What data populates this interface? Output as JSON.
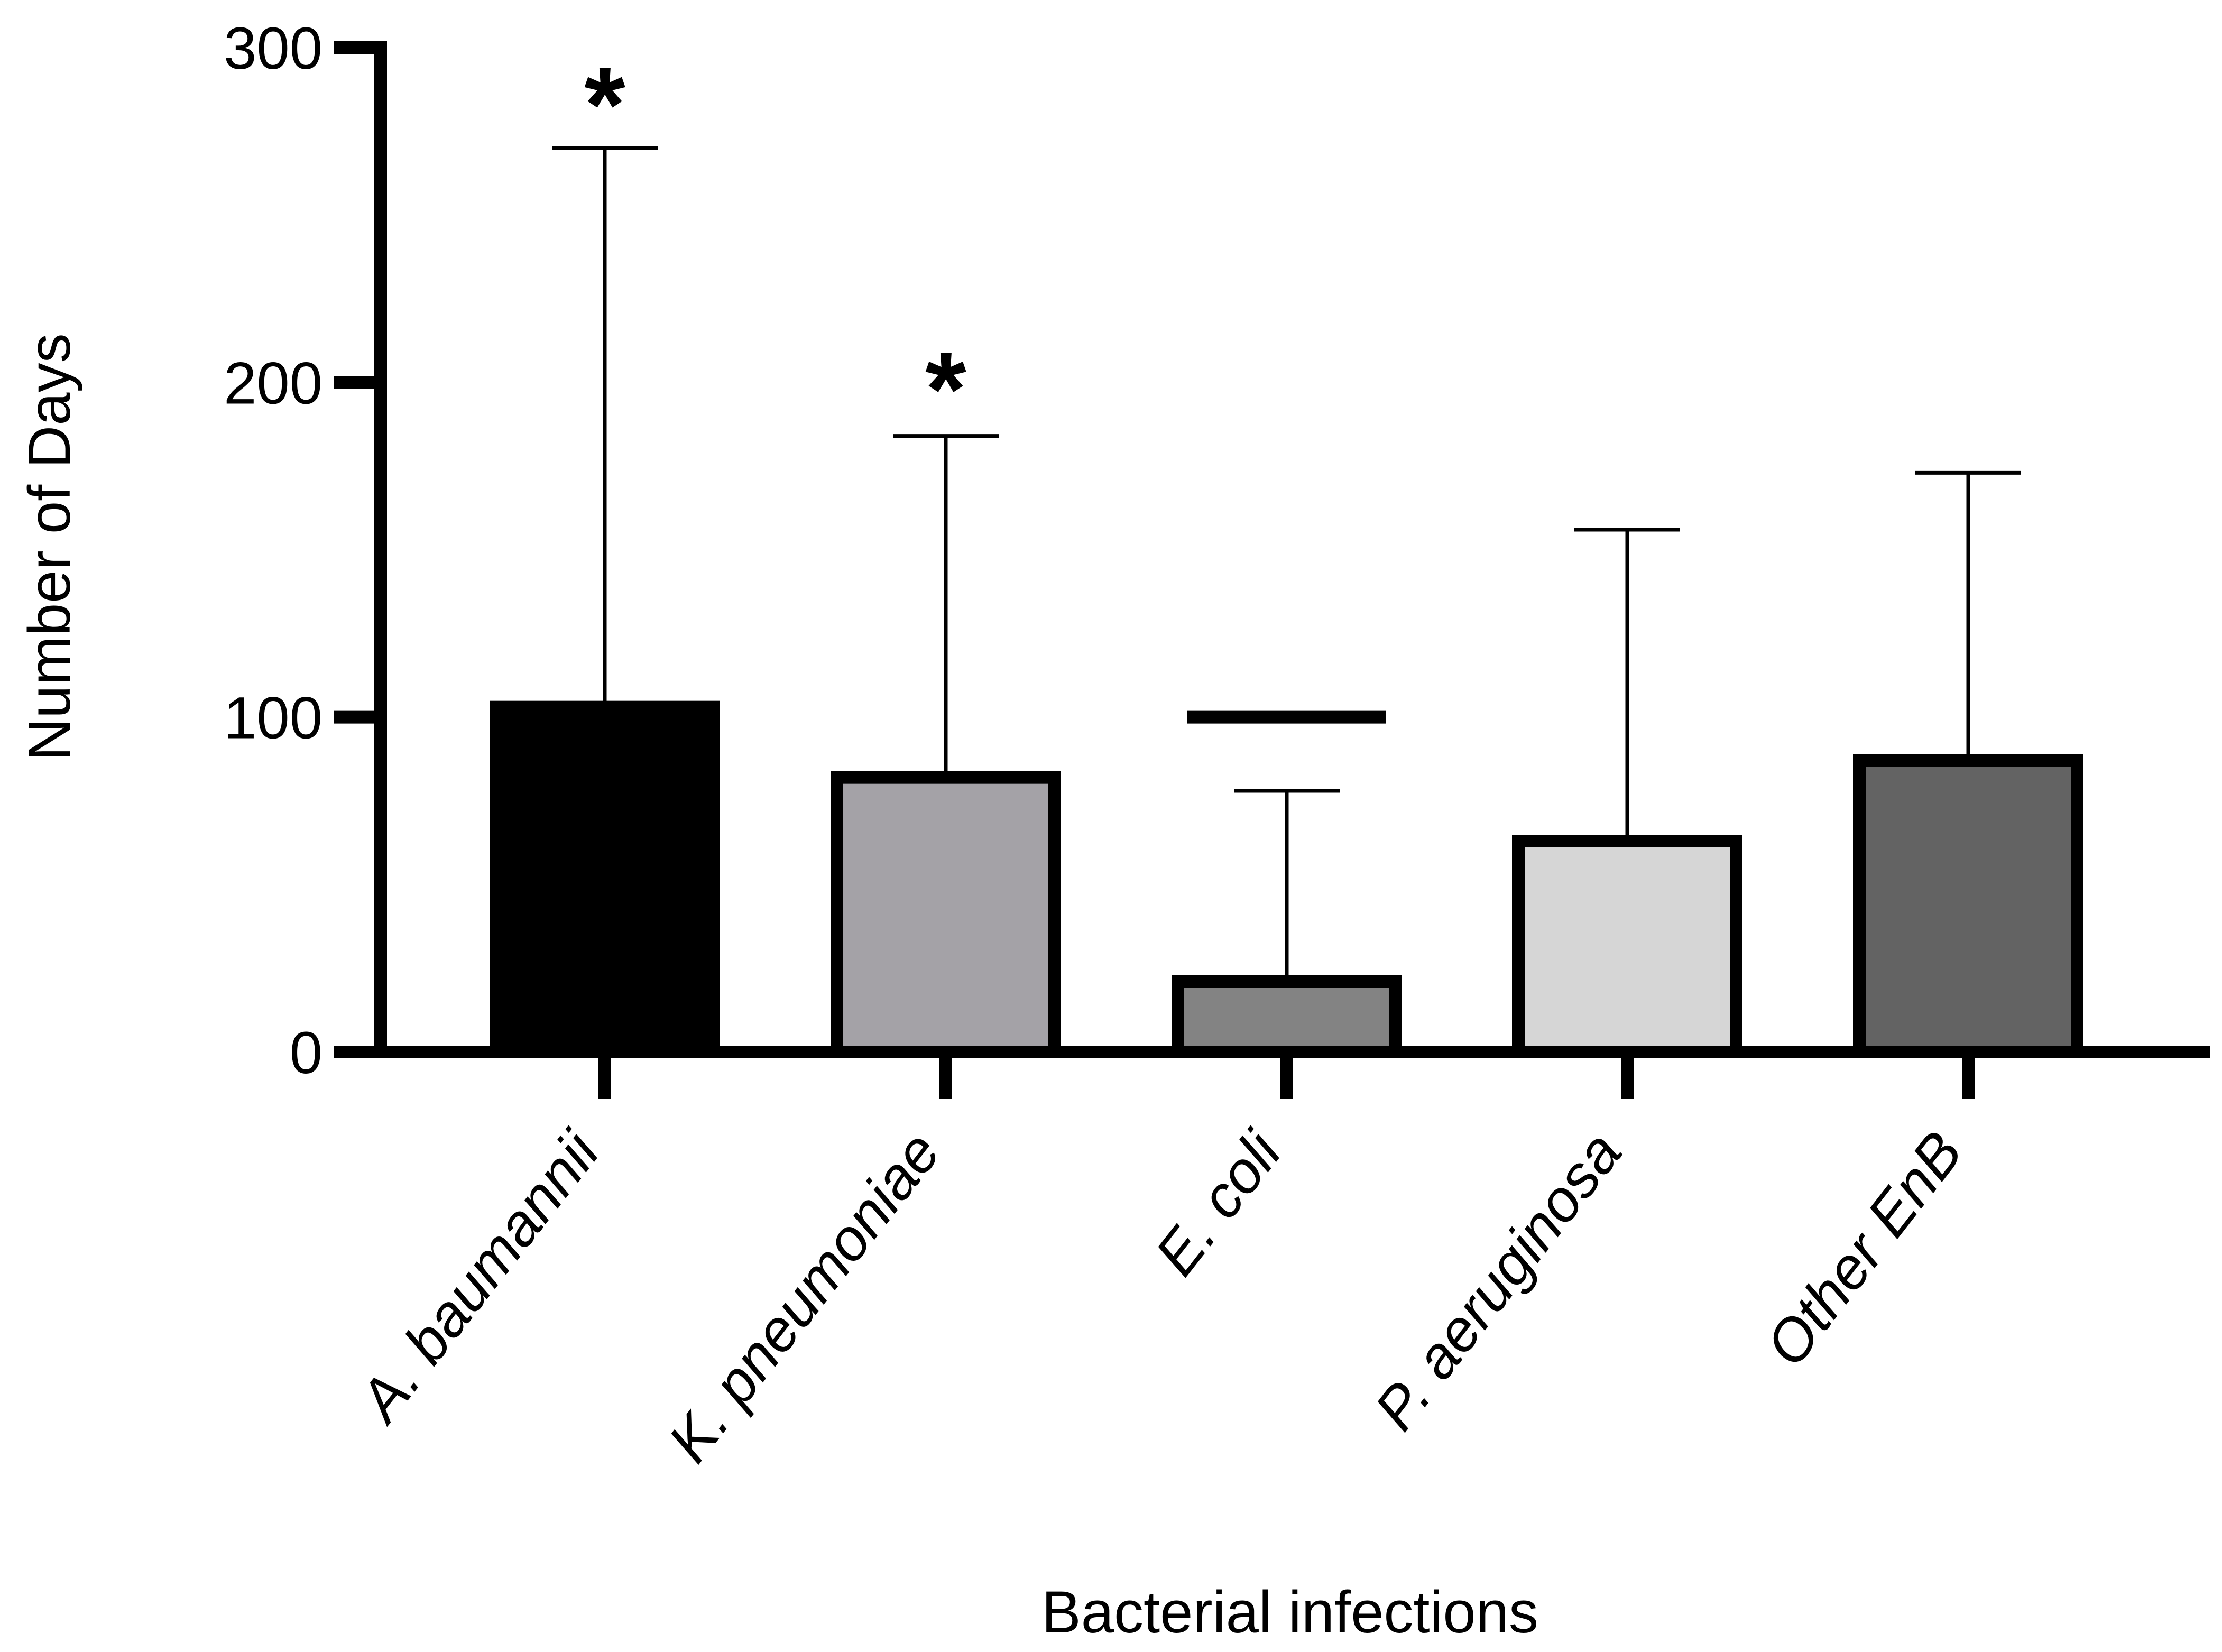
{
  "chart_data": {
    "type": "bar",
    "title": "",
    "xlabel": "Bacterial infections",
    "ylabel": "Number of Days",
    "ylim": [
      0,
      300
    ],
    "yticks": [
      0,
      100,
      200,
      300
    ],
    "ytick_labels": [
      "0",
      "100",
      "200",
      "300"
    ],
    "categories": [
      "A. baumannii",
      "K. pneumoniae",
      "E. coli",
      "P. aeruginosa",
      "Other EnB"
    ],
    "values": [
      103,
      82,
      21,
      63,
      87
    ],
    "error_upper": [
      270,
      184,
      78,
      156,
      173
    ],
    "bar_colors": [
      "#000000",
      "#a4a2a7",
      "#838383",
      "#d6d6d6",
      "#636363"
    ],
    "annotations": [
      {
        "category": "A. baumannii",
        "text": "*",
        "value": 295
      },
      {
        "category": "K. pneumoniae",
        "text": "*",
        "value": 210
      }
    ],
    "reference_line": {
      "from_category": "E. coli",
      "value": 100
    }
  }
}
